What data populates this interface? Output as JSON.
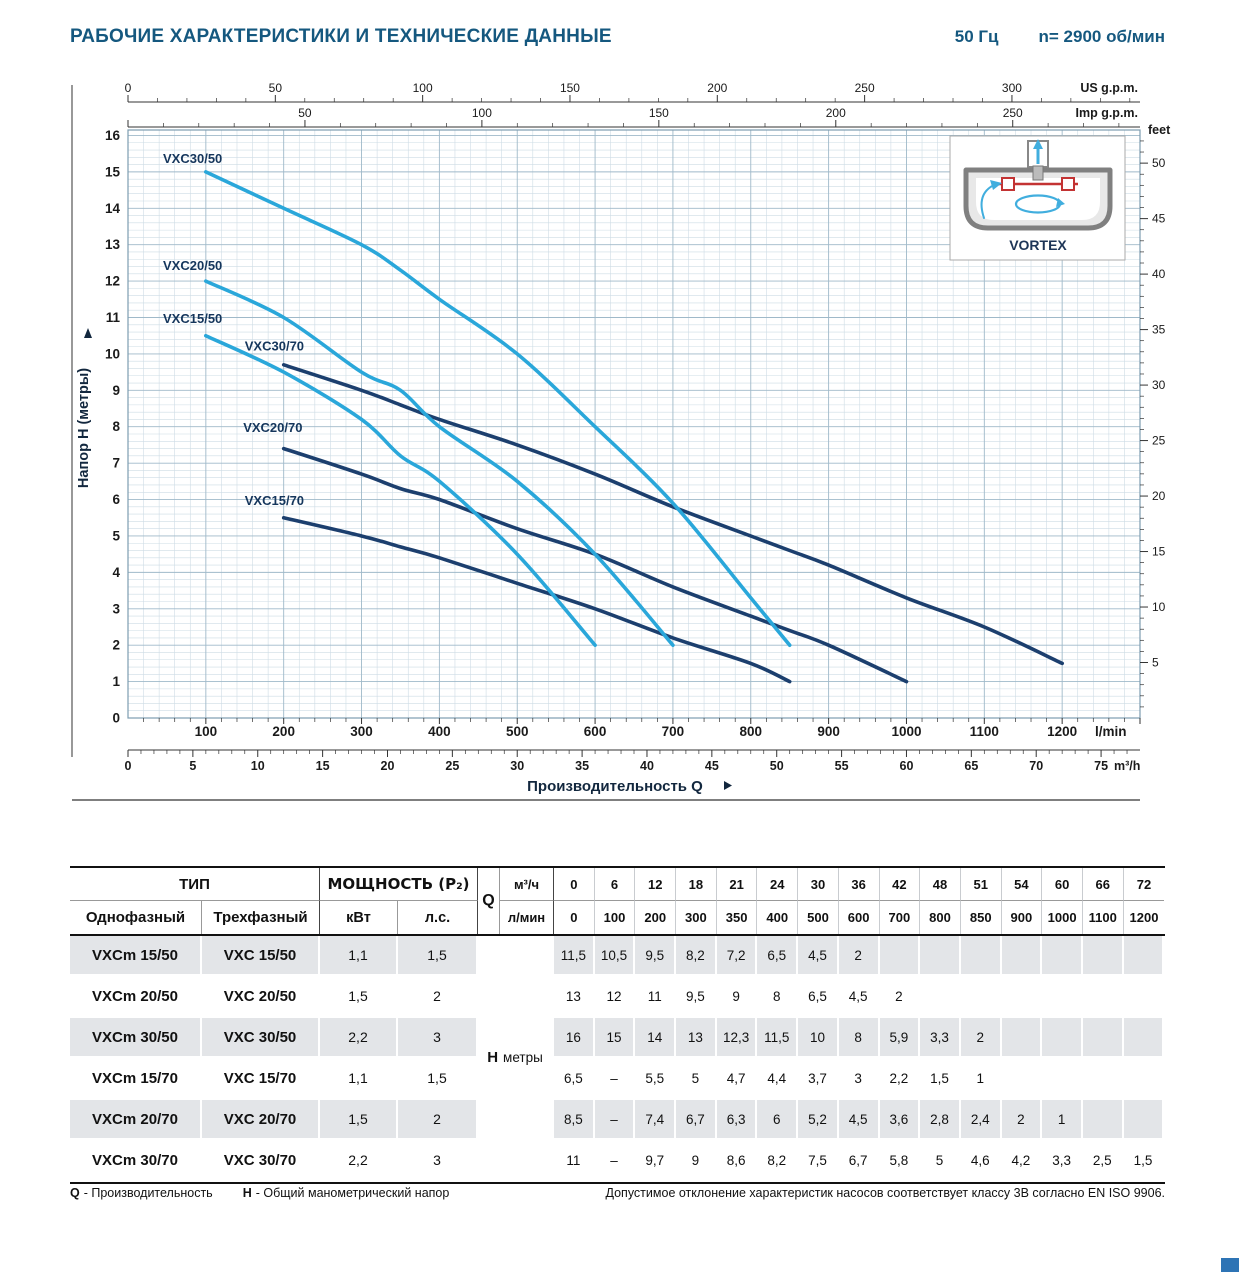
{
  "header": {
    "title": "РАБОЧИЕ ХАРАКТЕРИСТИКИ И ТЕХНИЧЕСКИЕ ДАННЫЕ",
    "frequency": "50 Гц",
    "speed": "n= 2900 об/мин"
  },
  "colors": {
    "accent": "#15587F",
    "curve_50": "#2AA7DA",
    "curve_70": "#1C3F6E",
    "curve_label": "#15365C",
    "grid_minor": "#CEDCE5",
    "grid_major": "#9FB9C9",
    "axis_line": "#333333",
    "row_shade": "#E3E5E8"
  },
  "chart_data": {
    "type": "line",
    "title": "",
    "xlabel": "Производительность Q",
    "ylabel": "Напор H (метры)",
    "xlim_lmin": [
      0,
      1300
    ],
    "ylim_m": [
      0,
      16.15
    ],
    "grid": true,
    "x_axes": {
      "us_gpm": {
        "label": "US g.p.m.",
        "ticks": [
          0,
          50,
          100,
          150,
          200,
          250,
          300
        ],
        "lmin_per_unit": 3.785
      },
      "imp_gpm": {
        "label": "Imp g.p.m.",
        "ticks": [
          50,
          100,
          150,
          200,
          250
        ],
        "lmin_per_unit": 4.546
      },
      "lmin": {
        "label": "l/min",
        "ticks": [
          100,
          200,
          300,
          400,
          500,
          600,
          700,
          800,
          900,
          1000,
          1100,
          1200
        ]
      },
      "m3h": {
        "label": "m³/h",
        "ticks": [
          0,
          5,
          10,
          15,
          20,
          25,
          30,
          35,
          40,
          45,
          50,
          55,
          60,
          65,
          70,
          75
        ],
        "lmin_per_unit": 16.6667
      }
    },
    "y_axes": {
      "meters": {
        "ticks": [
          0,
          1,
          2,
          3,
          4,
          5,
          6,
          7,
          8,
          9,
          10,
          11,
          12,
          13,
          14,
          15,
          16
        ]
      },
      "feet": {
        "label": "feet",
        "ticks": [
          5,
          10,
          15,
          20,
          25,
          30,
          35,
          40,
          45,
          50
        ],
        "m_per_unit": 0.3048
      }
    },
    "series": [
      {
        "name": "VXC30/70",
        "family": "70",
        "color": "#1C3F6E",
        "label_at": [
          150,
          10.1
        ],
        "points": [
          [
            200,
            9.7
          ],
          [
            300,
            9
          ],
          [
            350,
            8.6
          ],
          [
            400,
            8.2
          ],
          [
            500,
            7.5
          ],
          [
            600,
            6.7
          ],
          [
            700,
            5.8
          ],
          [
            800,
            5
          ],
          [
            850,
            4.6
          ],
          [
            900,
            4.2
          ],
          [
            1000,
            3.3
          ],
          [
            1100,
            2.5
          ],
          [
            1200,
            1.5
          ]
        ]
      },
      {
        "name": "VXC20/70",
        "family": "70",
        "color": "#1C3F6E",
        "label_at": [
          148,
          7.85
        ],
        "points": [
          [
            200,
            7.4
          ],
          [
            300,
            6.7
          ],
          [
            350,
            6.3
          ],
          [
            400,
            6
          ],
          [
            500,
            5.2
          ],
          [
            600,
            4.5
          ],
          [
            700,
            3.6
          ],
          [
            800,
            2.8
          ],
          [
            850,
            2.4
          ],
          [
            900,
            2
          ],
          [
            1000,
            1
          ]
        ]
      },
      {
        "name": "VXC15/70",
        "family": "70",
        "color": "#1C3F6E",
        "label_at": [
          150,
          5.85
        ],
        "points": [
          [
            200,
            5.5
          ],
          [
            300,
            5
          ],
          [
            350,
            4.7
          ],
          [
            400,
            4.4
          ],
          [
            500,
            3.7
          ],
          [
            600,
            3
          ],
          [
            700,
            2.2
          ],
          [
            800,
            1.5
          ],
          [
            850,
            1
          ]
        ]
      },
      {
        "name": "VXC30/50",
        "family": "50",
        "color": "#2AA7DA",
        "label_at": [
          45,
          15.25
        ],
        "points": [
          [
            100,
            15
          ],
          [
            200,
            14
          ],
          [
            300,
            13
          ],
          [
            350,
            12.3
          ],
          [
            400,
            11.5
          ],
          [
            500,
            10
          ],
          [
            600,
            8
          ],
          [
            700,
            5.9
          ],
          [
            800,
            3.3
          ],
          [
            850,
            2
          ]
        ]
      },
      {
        "name": "VXC20/50",
        "family": "50",
        "color": "#2AA7DA",
        "label_at": [
          45,
          12.3
        ],
        "points": [
          [
            100,
            12
          ],
          [
            200,
            11
          ],
          [
            300,
            9.5
          ],
          [
            350,
            9
          ],
          [
            400,
            8
          ],
          [
            500,
            6.5
          ],
          [
            600,
            4.5
          ],
          [
            700,
            2
          ]
        ]
      },
      {
        "name": "VXC15/50",
        "family": "50",
        "color": "#2AA7DA",
        "label_at": [
          45,
          10.85
        ],
        "points": [
          [
            100,
            10.5
          ],
          [
            200,
            9.5
          ],
          [
            300,
            8.2
          ],
          [
            350,
            7.2
          ],
          [
            400,
            6.5
          ],
          [
            500,
            4.5
          ],
          [
            600,
            2
          ]
        ]
      }
    ],
    "inset": {
      "label": "VORTEX"
    }
  },
  "table": {
    "type_header": "ТИП",
    "power_header": "МОЩНОСТЬ (P₂)",
    "col1": "Однофазный",
    "col2": "Трехфазный",
    "col3": "кВт",
    "col4": "л.с.",
    "q_label": "Q",
    "q_row1_unit": "м³/ч",
    "q_row2_unit": "л/мин",
    "h_label": "H",
    "h_unit": "метры",
    "m3h_values": [
      "0",
      "6",
      "12",
      "18",
      "21",
      "24",
      "30",
      "36",
      "42",
      "48",
      "51",
      "54",
      "60",
      "66",
      "72"
    ],
    "lmin_values": [
      "0",
      "100",
      "200",
      "300",
      "350",
      "400",
      "500",
      "600",
      "700",
      "800",
      "850",
      "900",
      "1000",
      "1100",
      "1200"
    ],
    "rows": [
      {
        "single": "VXCm 15/50",
        "three": "VXC 15/50",
        "kw": "1,1",
        "hp": "1,5",
        "h": [
          "11,5",
          "10,5",
          "9,5",
          "8,2",
          "7,2",
          "6,5",
          "4,5",
          "2",
          "",
          "",
          "",
          "",
          "",
          "",
          ""
        ]
      },
      {
        "single": "VXCm 20/50",
        "three": "VXC 20/50",
        "kw": "1,5",
        "hp": "2",
        "h": [
          "13",
          "12",
          "11",
          "9,5",
          "9",
          "8",
          "6,5",
          "4,5",
          "2",
          "",
          "",
          "",
          "",
          "",
          ""
        ]
      },
      {
        "single": "VXCm 30/50",
        "three": "VXC 30/50",
        "kw": "2,2",
        "hp": "3",
        "h": [
          "16",
          "15",
          "14",
          "13",
          "12,3",
          "11,5",
          "10",
          "8",
          "5,9",
          "3,3",
          "2",
          "",
          "",
          "",
          ""
        ]
      },
      {
        "single": "VXCm 15/70",
        "three": "VXC 15/70",
        "kw": "1,1",
        "hp": "1,5",
        "h": [
          "6,5",
          "–",
          "5,5",
          "5",
          "4,7",
          "4,4",
          "3,7",
          "3",
          "2,2",
          "1,5",
          "1",
          "",
          "",
          "",
          ""
        ]
      },
      {
        "single": "VXCm 20/70",
        "three": "VXC 20/70",
        "kw": "1,5",
        "hp": "2",
        "h": [
          "8,5",
          "–",
          "7,4",
          "6,7",
          "6,3",
          "6",
          "5,2",
          "4,5",
          "3,6",
          "2,8",
          "2,4",
          "2",
          "1",
          "",
          ""
        ]
      },
      {
        "single": "VXCm 30/70",
        "three": "VXC 30/70",
        "kw": "2,2",
        "hp": "3",
        "h": [
          "11",
          "–",
          "9,7",
          "9",
          "8,6",
          "8,2",
          "7,5",
          "6,7",
          "5,8",
          "5",
          "4,6",
          "4,2",
          "3,3",
          "2,5",
          "1,5"
        ]
      }
    ]
  },
  "footer": {
    "q_abbr": "Q",
    "q_text": "- Производительность",
    "h_abbr": "H",
    "h_text": "- Общий манометрический напор",
    "note": "Допустимое отклонение характеристик насосов соответствует классу 3B согласно EN ISO 9906."
  }
}
